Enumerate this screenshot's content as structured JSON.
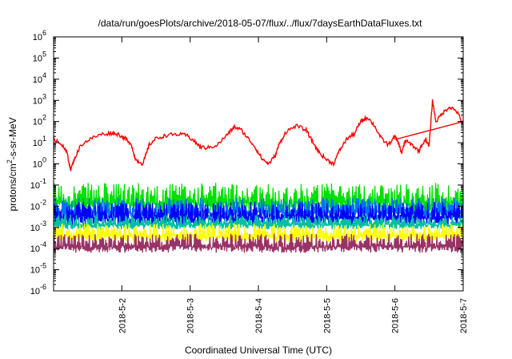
{
  "chart_data": {
    "type": "line",
    "title": "/data/run/goesPlots/archive/2018-05-07/flux/../flux/7daysEarthDataFluxes.txt",
    "xlabel": "Coordinated Universal Time (UTC)",
    "ylabel": "protons/cm²-s-sr-MeV",
    "yscale": "log",
    "ylim_exponents": [
      -6,
      6
    ],
    "y_tick_labels": [
      {
        "base": "10",
        "exp": "6"
      },
      {
        "base": "10",
        "exp": "5"
      },
      {
        "base": "10",
        "exp": "4"
      },
      {
        "base": "10",
        "exp": "3"
      },
      {
        "base": "10",
        "exp": "2"
      },
      {
        "base": "10",
        "exp": "1"
      },
      {
        "base": "10",
        "exp": "0"
      },
      {
        "base": "10",
        "exp": "-1"
      },
      {
        "base": "10",
        "exp": "-2"
      },
      {
        "base": "10",
        "exp": "-3"
      },
      {
        "base": "10",
        "exp": "-4"
      },
      {
        "base": "10",
        "exp": "-5"
      },
      {
        "base": "10",
        "exp": "-6"
      }
    ],
    "x_tick_labels": [
      "2018-5-2",
      "2018-5-3",
      "2018-5-4",
      "2018-5-5",
      "2018-5-6",
      "2018-5-7"
    ],
    "xlim_days": [
      1.0,
      7.0
    ],
    "grid": false,
    "series": [
      {
        "color": "#ff0000",
        "x": [
          1.0,
          1.1,
          1.2,
          1.25,
          1.3,
          1.4,
          1.55,
          1.7,
          1.85,
          1.95,
          2.05,
          2.15,
          2.2,
          2.3,
          2.35,
          2.4,
          2.5,
          2.65,
          2.8,
          2.95,
          3.05,
          3.15,
          3.25,
          3.4,
          3.55,
          3.65,
          3.75,
          3.85,
          3.95,
          4.05,
          4.15,
          4.25,
          4.3,
          4.4,
          4.55,
          4.7,
          4.8,
          4.9,
          5.0,
          5.1,
          5.2,
          5.3,
          5.4,
          5.5,
          5.55,
          5.6,
          5.7,
          5.8,
          5.9,
          6.0,
          6.05,
          6.1,
          6.15,
          6.25,
          6.35,
          6.45,
          6.5,
          6.55,
          6.6,
          6.7,
          6.8,
          6.9,
          7.0
        ],
        "values_log10": [
          1.2,
          1.0,
          0.5,
          -0.3,
          0.2,
          0.9,
          1.2,
          1.4,
          1.45,
          1.4,
          1.2,
          0.8,
          0.2,
          0.0,
          0.4,
          0.9,
          1.2,
          1.35,
          1.4,
          1.35,
          1.1,
          0.8,
          0.75,
          0.9,
          1.4,
          1.75,
          1.6,
          1.2,
          0.8,
          0.25,
          0.0,
          0.4,
          0.9,
          1.5,
          1.8,
          1.6,
          1.0,
          0.5,
          0.2,
          0.0,
          0.7,
          1.2,
          1.4,
          2.0,
          2.1,
          2.2,
          1.8,
          1.2,
          0.9,
          1.3,
          1.0,
          0.5,
          1.1,
          0.9,
          0.6,
          1.2,
          0.8,
          3.0,
          2.0,
          2.4,
          2.7,
          2.5,
          1.9
        ]
      },
      {
        "color": "#ff0000",
        "x": [
          6.0,
          7.0
        ],
        "values_log10": [
          1.15,
          2.0
        ]
      },
      {
        "color": "#00e000",
        "band_log10": [
          -2.3,
          -0.9
        ]
      },
      {
        "color": "#0070ff",
        "band_log10": [
          -2.6,
          -1.6
        ]
      },
      {
        "color": "#0000ff",
        "band_log10": [
          -2.9,
          -1.8
        ]
      },
      {
        "color": "#00bfa0",
        "band_log10": [
          -3.1,
          -2.4
        ]
      },
      {
        "color": "#ffff00",
        "band_log10": [
          -3.7,
          -2.8
        ]
      },
      {
        "color": "#993366",
        "band_log10": [
          -4.2,
          -3.3
        ]
      }
    ]
  }
}
